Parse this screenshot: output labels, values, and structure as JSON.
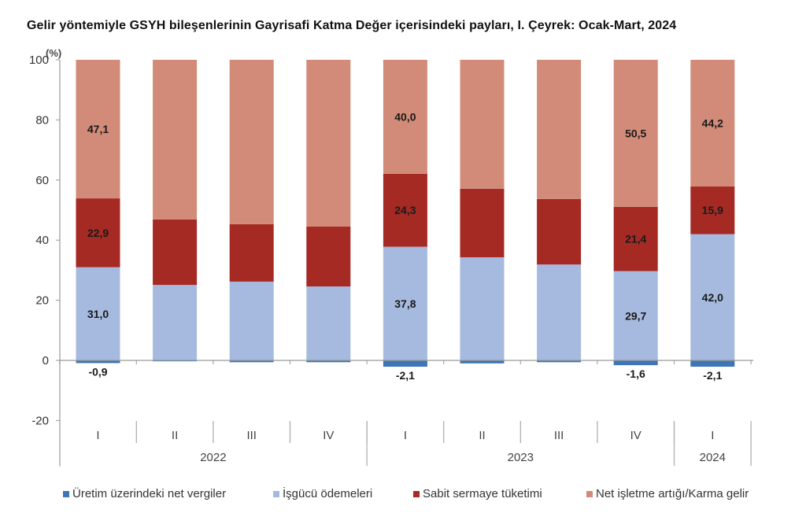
{
  "chart_data": {
    "type": "bar",
    "stacked": true,
    "title": "Gelir yöntemiyle GSYH bileşenlerinin Gayrisafi Katma Değer içerisindeki payları, I. Çeyrek: Ocak-Mart, 2024",
    "ylabel": "(%)",
    "xlabel": "",
    "ylim": [
      -20,
      100
    ],
    "yticks": [
      -20,
      0,
      20,
      40,
      60,
      80,
      100
    ],
    "grid": false,
    "legend_position": "bottom",
    "categories": [
      "I",
      "II",
      "III",
      "IV",
      "I",
      "II",
      "III",
      "IV",
      "I"
    ],
    "year_groups": [
      {
        "label": "2022",
        "count": 4
      },
      {
        "label": "2023",
        "count": 4
      },
      {
        "label": "2024",
        "count": 1
      }
    ],
    "series": [
      {
        "name": "Üretim üzerindeki net vergiler",
        "color": "#3d75b5",
        "values": [
          -0.9,
          -0.3,
          -0.6,
          -0.6,
          -2.1,
          -1.0,
          -0.6,
          -1.6,
          -2.1
        ],
        "labels": [
          "-0,9",
          "",
          "",
          "",
          "-2,1",
          "",
          "",
          "-1,6",
          "-2,1"
        ]
      },
      {
        "name": "İşgücü ödemeleri",
        "color": "#a6badf",
        "values": [
          31.0,
          25.1,
          26.2,
          24.6,
          37.8,
          34.3,
          31.9,
          29.7,
          42.0
        ],
        "labels": [
          "31,0",
          "",
          "",
          "",
          "37,8",
          "",
          "",
          "29,7",
          "42,0"
        ]
      },
      {
        "name": "Sabit sermaye tüketimi",
        "color": "#a52a24",
        "values": [
          22.9,
          21.8,
          19.1,
          19.9,
          24.3,
          22.8,
          21.8,
          21.4,
          15.9
        ],
        "labels": [
          "22,9",
          "",
          "",
          "",
          "24,3",
          "",
          "",
          "21,4",
          "15,9"
        ]
      },
      {
        "name": "Net işletme artığı/Karma gelir",
        "color": "#d18b78",
        "values": [
          47.1,
          53.4,
          55.3,
          56.1,
          40.0,
          43.9,
          46.9,
          50.5,
          44.2
        ],
        "labels": [
          "47,1",
          "",
          "",
          "",
          "40,0",
          "",
          "",
          "50,5",
          "44,2"
        ]
      }
    ]
  }
}
